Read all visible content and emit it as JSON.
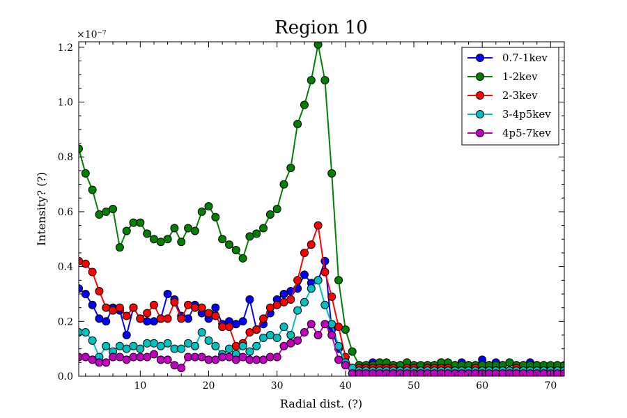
{
  "chart_data": {
    "type": "line",
    "title": "Region 10",
    "xlabel": "Radial dist. (?)",
    "ylabel": "Intensity? (?)",
    "y_multiplier_label": "×10⁻⁷",
    "xlim": [
      1,
      72
    ],
    "ylim": [
      0.0,
      1.22
    ],
    "xticks": [
      10,
      20,
      30,
      40,
      50,
      60,
      70
    ],
    "yticks": [
      0.0,
      0.2,
      0.4,
      0.6,
      0.8,
      1.0,
      1.2
    ],
    "ytick_labels": [
      "0.0",
      "0.2",
      "0.4",
      "0.6",
      "0.8",
      "1.0",
      "1.2"
    ],
    "legend_position": "top-right",
    "grid": false,
    "x": [
      1,
      2,
      3,
      4,
      5,
      6,
      7,
      8,
      9,
      10,
      11,
      12,
      13,
      14,
      15,
      16,
      17,
      18,
      19,
      20,
      21,
      22,
      23,
      24,
      25,
      26,
      27,
      28,
      29,
      30,
      31,
      32,
      33,
      34,
      35,
      36,
      37,
      38,
      39,
      40,
      41,
      42,
      43,
      44,
      45,
      46,
      47,
      48,
      49,
      50,
      51,
      52,
      53,
      54,
      55,
      56,
      57,
      58,
      59,
      60,
      61,
      62,
      63,
      64,
      65,
      66,
      67,
      68,
      69,
      70,
      71,
      72
    ],
    "series": [
      {
        "name": "0.7-1kev",
        "color": "#0000ff",
        "values": [
          0.32,
          0.3,
          0.26,
          0.21,
          0.2,
          0.25,
          0.24,
          0.15,
          0.25,
          0.21,
          0.2,
          0.2,
          0.21,
          0.3,
          0.28,
          0.22,
          0.21,
          0.26,
          0.23,
          0.21,
          0.25,
          0.19,
          0.2,
          0.19,
          0.2,
          0.28,
          0.17,
          0.19,
          0.23,
          0.28,
          0.3,
          0.31,
          0.32,
          0.37,
          0.34,
          0.35,
          0.42,
          0.17,
          0.1,
          0.05,
          0.03,
          0.04,
          0.04,
          0.05,
          0.04,
          0.05,
          0.04,
          0.04,
          0.04,
          0.04,
          0.03,
          0.04,
          0.04,
          0.05,
          0.04,
          0.04,
          0.05,
          0.04,
          0.04,
          0.06,
          0.04,
          0.05,
          0.04,
          0.05,
          0.04,
          0.04,
          0.05,
          0.04,
          0.04,
          0.03,
          0.04,
          0.03
        ]
      },
      {
        "name": "1-2kev",
        "color": "#008000",
        "values": [
          0.83,
          0.74,
          0.68,
          0.59,
          0.6,
          0.61,
          0.47,
          0.53,
          0.56,
          0.56,
          0.52,
          0.5,
          0.49,
          0.5,
          0.54,
          0.49,
          0.54,
          0.53,
          0.6,
          0.62,
          0.58,
          0.5,
          0.48,
          0.46,
          0.43,
          0.51,
          0.52,
          0.54,
          0.59,
          0.61,
          0.7,
          0.76,
          0.92,
          0.99,
          1.08,
          1.21,
          1.08,
          0.74,
          0.35,
          0.17,
          0.09,
          0.04,
          0.04,
          0.04,
          0.05,
          0.05,
          0.04,
          0.04,
          0.05,
          0.04,
          0.04,
          0.04,
          0.04,
          0.05,
          0.05,
          0.04,
          0.04,
          0.04,
          0.04,
          0.04,
          0.04,
          0.04,
          0.04,
          0.05,
          0.04,
          0.04,
          0.04,
          0.04,
          0.04,
          0.04,
          0.04,
          0.04
        ]
      },
      {
        "name": "2-3kev",
        "color": "#ff0000",
        "values": [
          0.42,
          0.41,
          0.38,
          0.31,
          0.25,
          0.24,
          0.25,
          0.22,
          0.25,
          0.21,
          0.23,
          0.26,
          0.21,
          0.21,
          0.27,
          0.21,
          0.26,
          0.25,
          0.25,
          0.23,
          0.22,
          0.18,
          0.18,
          0.11,
          0.12,
          0.16,
          0.17,
          0.21,
          0.25,
          0.26,
          0.27,
          0.28,
          0.35,
          0.45,
          0.48,
          0.55,
          0.38,
          0.29,
          0.18,
          0.07,
          0.03,
          0.03,
          0.03,
          0.03,
          0.03,
          0.03,
          0.03,
          0.02,
          0.03,
          0.03,
          0.02,
          0.03,
          0.03,
          0.03,
          0.03,
          0.02,
          0.02,
          0.02,
          0.03,
          0.02,
          0.02,
          0.02,
          0.02,
          0.02,
          0.03,
          0.02,
          0.02,
          0.02,
          0.02,
          0.02,
          0.02,
          0.02
        ]
      },
      {
        "name": "3-4p5kev",
        "color": "#00bfbf",
        "values": [
          0.16,
          0.16,
          0.13,
          0.07,
          0.11,
          0.09,
          0.11,
          0.1,
          0.11,
          0.1,
          0.12,
          0.12,
          0.11,
          0.12,
          0.1,
          0.1,
          0.12,
          0.11,
          0.16,
          0.13,
          0.11,
          0.08,
          0.1,
          0.08,
          0.11,
          0.09,
          0.11,
          0.14,
          0.15,
          0.14,
          0.18,
          0.15,
          0.24,
          0.27,
          0.32,
          0.35,
          0.26,
          0.19,
          0.11,
          0.05,
          0.03,
          0.02,
          0.02,
          0.02,
          0.02,
          0.02,
          0.02,
          0.02,
          0.02,
          0.02,
          0.02,
          0.02,
          0.02,
          0.02,
          0.02,
          0.02,
          0.02,
          0.02,
          0.02,
          0.02,
          0.02,
          0.02,
          0.02,
          0.02,
          0.02,
          0.02,
          0.02,
          0.02,
          0.02,
          0.02,
          0.02,
          0.02
        ]
      },
      {
        "name": "4p5-7kev",
        "color": "#bf00bf",
        "values": [
          0.07,
          0.07,
          0.06,
          0.05,
          0.05,
          0.07,
          0.07,
          0.06,
          0.07,
          0.07,
          0.07,
          0.08,
          0.06,
          0.06,
          0.04,
          0.03,
          0.07,
          0.07,
          0.07,
          0.06,
          0.06,
          0.07,
          0.07,
          0.06,
          0.07,
          0.06,
          0.06,
          0.06,
          0.07,
          0.07,
          0.11,
          0.12,
          0.13,
          0.16,
          0.19,
          0.15,
          0.19,
          0.15,
          0.06,
          0.04,
          0.01,
          0.01,
          0.01,
          0.01,
          0.01,
          0.01,
          0.01,
          0.01,
          0.01,
          0.01,
          0.01,
          0.01,
          0.01,
          0.01,
          0.01,
          0.01,
          0.01,
          0.01,
          0.01,
          0.01,
          0.01,
          0.01,
          0.01,
          0.01,
          0.01,
          0.01,
          0.01,
          0.01,
          0.01,
          0.01,
          0.01,
          0.01
        ]
      }
    ]
  }
}
